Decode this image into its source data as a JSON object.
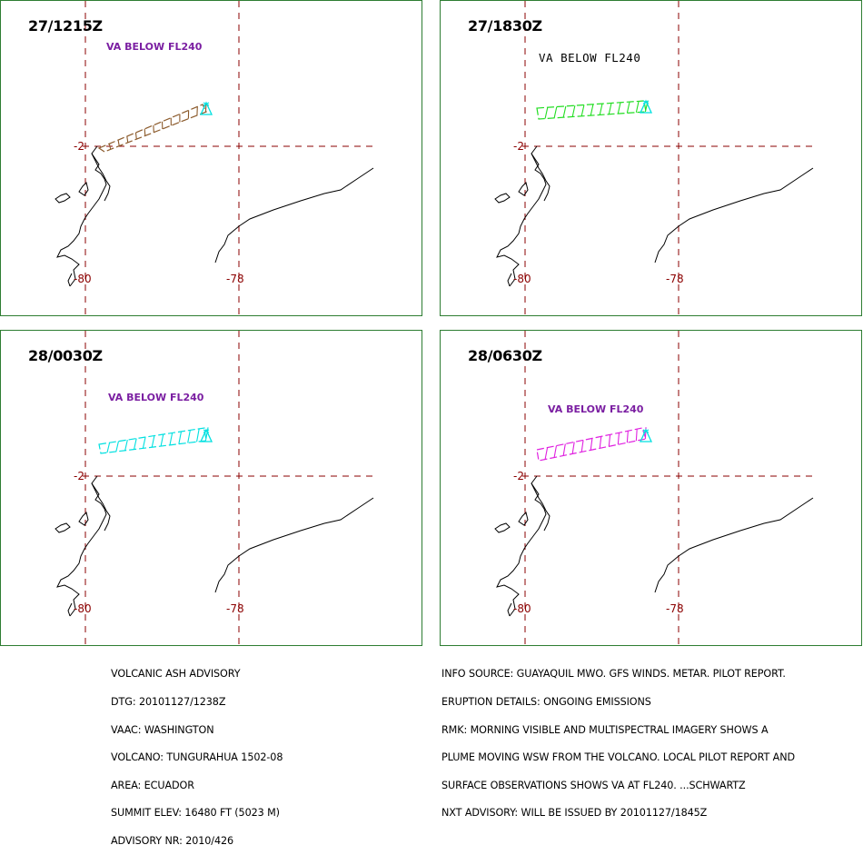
{
  "panels": [
    {
      "time": "27/1215Z",
      "va_label": "VA BELOW FL240",
      "plume_color": "#8b5a2b"
    },
    {
      "time": "27/1830Z",
      "va_label": "VA BELOW FL240",
      "plume_color": "#22dd22"
    },
    {
      "time": "28/0030Z",
      "va_label": "VA BELOW FL240",
      "plume_color": "#00e0e0"
    },
    {
      "time": "28/0630Z",
      "va_label": "VA BELOW FL240",
      "plume_color": "#e020e0"
    }
  ],
  "map_labels": {
    "lat": "-2",
    "lon_left": "-80",
    "lon_right": "-78"
  },
  "colors": {
    "grid": "#8b0000",
    "frame": "#2e7d32",
    "va_text": "#7b1fa2",
    "volcano": "#00e0e0"
  },
  "advisory_left": [
    "VOLCANIC ASH ADVISORY",
    "DTG: 20101127/1238Z",
    "VAAC: WASHINGTON",
    "VOLCANO: TUNGURAHUA 1502-08",
    "AREA: ECUADOR",
    "SUMMIT ELEV: 16480 FT (5023 M)",
    "ADVISORY NR: 2010/426"
  ],
  "advisory_right": [
    "INFO SOURCE: GUAYAQUIL MWO. GFS WINDS. METAR. PILOT REPORT.",
    "ERUPTION DETAILS: ONGOING EMISSIONS",
    "RMK: MORNING VISIBLE AND MULTISPECTRAL IMAGERY SHOWS A",
    "PLUME MOVING WSW FROM THE VOLCANO. LOCAL PILOT REPORT AND",
    "SURFACE OBSERVATIONS SHOWS VA AT FL240. ...SCHWARTZ",
    "NXT ADVISORY: WILL BE ISSUED BY 20101127/1845Z"
  ]
}
